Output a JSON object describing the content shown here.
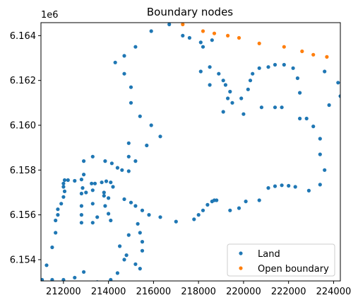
{
  "chart_data": {
    "type": "scatter",
    "title": "Boundary nodes",
    "offset_label": "1e6",
    "xlim": [
      211000,
      224300
    ],
    "ylim": [
      6.15305,
      6.16458
    ],
    "xticks": [
      212000,
      214000,
      216000,
      218000,
      220000,
      222000,
      224000
    ],
    "xtick_labels": [
      "212000",
      "214000",
      "216000",
      "218000",
      "220000",
      "222000",
      "224000"
    ],
    "yticks": [
      6.154,
      6.156,
      6.158,
      6.16,
      6.162,
      6.164
    ],
    "ytick_labels": [
      "6.154",
      "6.156",
      "6.158",
      "6.160",
      "6.162",
      "6.164"
    ],
    "legend_position": "lower right",
    "series": [
      {
        "name": "Land",
        "color": "#1f77b4",
        "points": [
          [
            211050,
            6.1531
          ],
          [
            211250,
            6.15375
          ],
          [
            211500,
            6.15455
          ],
          [
            211650,
            6.1552
          ],
          [
            211650,
            6.15575
          ],
          [
            211750,
            6.156
          ],
          [
            211750,
            6.15625
          ],
          [
            211900,
            6.1565
          ],
          [
            212000,
            6.1568
          ],
          [
            212050,
            6.15705
          ],
          [
            212000,
            6.1574
          ],
          [
            212000,
            6.15725
          ],
          [
            212050,
            6.15755
          ],
          [
            212200,
            6.15755
          ],
          [
            212500,
            6.15752
          ],
          [
            212800,
            6.15758
          ],
          [
            212900,
            6.1578
          ],
          [
            212900,
            6.1584
          ],
          [
            213300,
            6.1586
          ],
          [
            212850,
            6.1572
          ],
          [
            212800,
            6.15695
          ],
          [
            213000,
            6.157
          ],
          [
            213300,
            6.1571
          ],
          [
            213400,
            6.1574
          ],
          [
            213250,
            6.1574
          ],
          [
            213700,
            6.15745
          ],
          [
            213900,
            6.1575
          ],
          [
            214100,
            6.15745
          ],
          [
            214200,
            6.15725
          ],
          [
            213800,
            6.157
          ],
          [
            213800,
            6.15685
          ],
          [
            214000,
            6.15675
          ],
          [
            213850,
            6.1564
          ],
          [
            214000,
            6.15605
          ],
          [
            214100,
            6.15575
          ],
          [
            213500,
            6.1559
          ],
          [
            213300,
            6.1565
          ],
          [
            212800,
            6.1564
          ],
          [
            212800,
            6.156
          ],
          [
            212800,
            6.15565
          ],
          [
            213300,
            6.15565
          ],
          [
            213850,
            6.1584
          ],
          [
            214150,
            6.1583
          ],
          [
            214600,
            6.158
          ],
          [
            214900,
            6.15795
          ],
          [
            214900,
            6.1586
          ],
          [
            214900,
            6.1592
          ],
          [
            214400,
            6.1581
          ],
          [
            214700,
            6.1567
          ],
          [
            215000,
            6.15655
          ],
          [
            215200,
            6.1564
          ],
          [
            215500,
            6.1562
          ],
          [
            215800,
            6.156
          ],
          [
            216300,
            6.1559
          ],
          [
            217000,
            6.1557
          ],
          [
            217800,
            6.1558
          ],
          [
            218000,
            6.156
          ],
          [
            218200,
            6.1562
          ],
          [
            218400,
            6.15645
          ],
          [
            218600,
            6.1566
          ],
          [
            218700,
            6.15665
          ],
          [
            218800,
            6.15665
          ],
          [
            219400,
            6.1562
          ],
          [
            219800,
            6.1563
          ],
          [
            220100,
            6.1566
          ],
          [
            220700,
            6.15665
          ],
          [
            221100,
            6.1572
          ],
          [
            221400,
            6.15728
          ],
          [
            221700,
            6.15732
          ],
          [
            222000,
            6.1573
          ],
          [
            222300,
            6.15725
          ],
          [
            222900,
            6.15708
          ],
          [
            223400,
            6.15735
          ],
          [
            223600,
            6.158
          ],
          [
            223400,
            6.1587
          ],
          [
            223400,
            6.1594
          ],
          [
            223100,
            6.15995
          ],
          [
            222800,
            6.1603
          ],
          [
            222500,
            6.16145
          ],
          [
            222400,
            6.1621
          ],
          [
            222200,
            6.16255
          ],
          [
            221800,
            6.1627
          ],
          [
            221400,
            6.1627
          ],
          [
            221100,
            6.1626
          ],
          [
            220700,
            6.16255
          ],
          [
            220400,
            6.1623
          ],
          [
            220300,
            6.162
          ],
          [
            220200,
            6.1616
          ],
          [
            219900,
            6.1612
          ],
          [
            219500,
            6.161
          ],
          [
            219100,
            6.1606
          ],
          [
            219300,
            6.1612
          ],
          [
            219400,
            6.1615
          ],
          [
            219200,
            6.1618
          ],
          [
            219100,
            6.162
          ],
          [
            218900,
            6.1623
          ],
          [
            218500,
            6.1626
          ],
          [
            218100,
            6.1624
          ],
          [
            218200,
            6.1635
          ],
          [
            218100,
            6.1637
          ],
          [
            217600,
            6.1639
          ],
          [
            217300,
            6.164
          ],
          [
            216700,
            6.1645
          ],
          [
            215900,
            6.1642
          ],
          [
            215200,
            6.1635
          ],
          [
            214700,
            6.1631
          ],
          [
            214300,
            6.1628
          ],
          [
            214700,
            6.1623
          ],
          [
            215000,
            6.1617
          ],
          [
            215000,
            6.161
          ],
          [
            215400,
            6.1604
          ],
          [
            215900,
            6.16
          ],
          [
            216300,
            6.1595
          ],
          [
            215700,
            6.1591
          ],
          [
            215200,
            6.1584
          ],
          [
            214500,
            6.1546
          ],
          [
            214800,
            6.1542
          ],
          [
            215200,
            6.1538
          ],
          [
            215400,
            6.1536
          ],
          [
            215500,
            6.1544
          ],
          [
            215500,
            6.1548
          ],
          [
            215400,
            6.1552
          ],
          [
            215300,
            6.1556
          ],
          [
            214900,
            6.1551
          ],
          [
            214700,
            6.154
          ],
          [
            214400,
            6.1534
          ],
          [
            214100,
            6.1531
          ],
          [
            213500,
            6.153
          ],
          [
            212900,
            6.15345
          ],
          [
            212500,
            6.1532
          ],
          [
            212000,
            6.1531
          ],
          [
            211500,
            6.1531
          ],
          [
            218600,
            6.1638
          ],
          [
            218500,
            6.1618
          ],
          [
            220000,
            6.1605
          ],
          [
            220800,
            6.1608
          ],
          [
            221400,
            6.1608
          ],
          [
            221700,
            6.1608
          ],
          [
            222500,
            6.1603
          ],
          [
            223600,
            6.1624
          ],
          [
            223800,
            6.1609
          ],
          [
            224200,
            6.1619
          ],
          [
            224300,
            6.1613
          ]
        ]
      },
      {
        "name": "Open boundary",
        "color": "#ff7f0e",
        "points": [
          [
            217300,
            6.1645
          ],
          [
            218200,
            6.1642
          ],
          [
            218700,
            6.1641
          ],
          [
            219300,
            6.164
          ],
          [
            219800,
            6.1639
          ],
          [
            220700,
            6.16365
          ],
          [
            221800,
            6.1635
          ],
          [
            222600,
            6.1633
          ],
          [
            223100,
            6.16315
          ],
          [
            223700,
            6.16305
          ]
        ]
      }
    ]
  }
}
